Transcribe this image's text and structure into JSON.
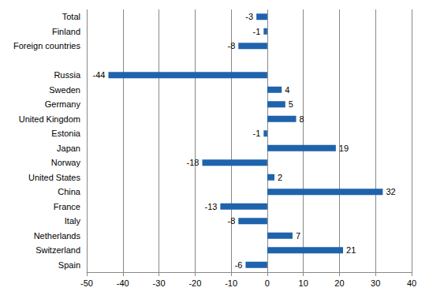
{
  "chart_data": {
    "type": "bar",
    "orientation": "horizontal",
    "categories": [
      "Total",
      "Finland",
      "Foreign countries",
      null,
      "Russia",
      "Sweden",
      "Germany",
      "United Kingdom",
      "Estonia",
      "Japan",
      "Norway",
      "United States",
      "China",
      "France",
      "Italy",
      "Netherlands",
      "Switzerland",
      "Spain"
    ],
    "values": [
      -3,
      -1,
      -8,
      null,
      -44,
      4,
      5,
      8,
      -1,
      19,
      -18,
      2,
      32,
      -13,
      -8,
      7,
      21,
      -6
    ],
    "color": "#1f63ad",
    "xlim": [
      -50,
      40
    ],
    "xticks": [
      -50,
      -40,
      -30,
      -20,
      -10,
      0,
      10,
      20,
      30,
      40
    ],
    "grid": true,
    "data_labels": true
  }
}
